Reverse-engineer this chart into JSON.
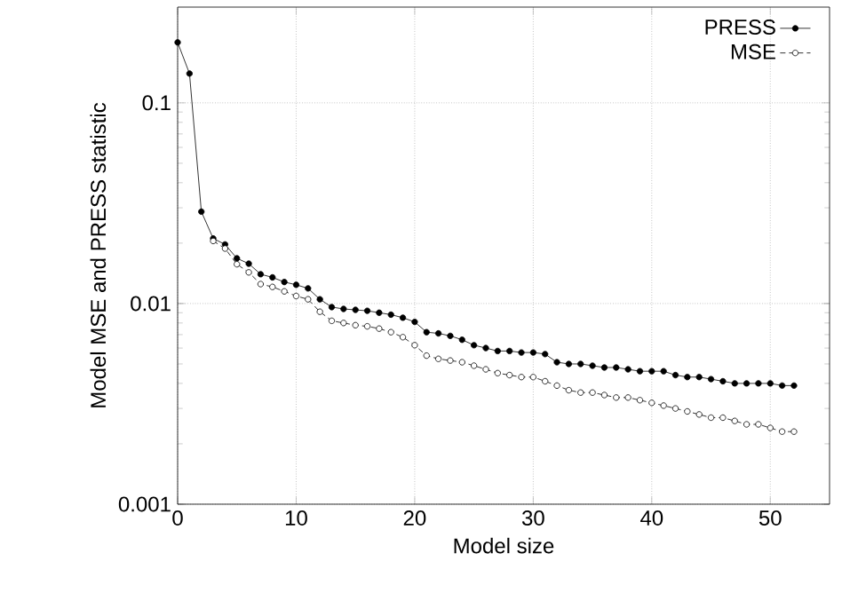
{
  "chart_data": {
    "type": "line",
    "xlabel": "Model size",
    "ylabel": "Model MSE and PRESS statistic",
    "log": "y",
    "xlim": [
      0,
      55
    ],
    "ylim": [
      0.001,
      0.3
    ],
    "xticks": [
      0,
      10,
      20,
      30,
      40,
      50
    ],
    "yticks": [
      {
        "value": 0.001,
        "label": "0.001"
      },
      {
        "value": 0.01,
        "label": "0.01"
      },
      {
        "value": 0.1,
        "label": "0.1"
      }
    ],
    "grid": true,
    "legend": "top right",
    "marker": "circle",
    "x": [
      0,
      1,
      2,
      3,
      4,
      5,
      6,
      7,
      8,
      9,
      10,
      11,
      12,
      13,
      14,
      15,
      16,
      17,
      18,
      19,
      20,
      21,
      22,
      23,
      24,
      25,
      26,
      27,
      28,
      29,
      30,
      31,
      32,
      33,
      34,
      35,
      36,
      37,
      38,
      39,
      40,
      41,
      42,
      43,
      44,
      45,
      46,
      47,
      48,
      49,
      50,
      51,
      52
    ],
    "series": [
      {
        "name": "PRESS",
        "color": "#000000",
        "line_style": "solid",
        "values": [
          0.2,
          0.14,
          0.0287,
          0.0211,
          0.0197,
          0.0168,
          0.0158,
          0.014,
          0.0135,
          0.0128,
          0.0124,
          0.0119,
          0.0105,
          0.0096,
          0.0094,
          0.0093,
          0.0092,
          0.009,
          0.0088,
          0.0085,
          0.0081,
          0.0072,
          0.0071,
          0.0069,
          0.0066,
          0.0062,
          0.006,
          0.0058,
          0.0058,
          0.0057,
          0.0057,
          0.0056,
          0.0051,
          0.005,
          0.005,
          0.0049,
          0.0048,
          0.0048,
          0.0047,
          0.0046,
          0.0046,
          0.0046,
          0.0044,
          0.0043,
          0.0043,
          0.0042,
          0.0041,
          0.004,
          0.004,
          0.004,
          0.004,
          0.0039,
          0.0039
        ]
      },
      {
        "name": "MSE",
        "color": "#000000",
        "line_style": "dashed",
        "values": [
          null,
          null,
          null,
          0.0205,
          0.0188,
          0.0157,
          0.0143,
          0.0125,
          0.0121,
          0.0115,
          0.0109,
          0.0105,
          0.0091,
          0.0082,
          0.008,
          0.0078,
          0.0077,
          0.0075,
          0.0072,
          0.0068,
          0.0062,
          0.0055,
          0.0053,
          0.0052,
          0.0051,
          0.0049,
          0.0047,
          0.0045,
          0.0044,
          0.0043,
          0.0043,
          0.0041,
          0.0039,
          0.0037,
          0.0036,
          0.0036,
          0.0035,
          0.0034,
          0.0034,
          0.0033,
          0.0032,
          0.0031,
          0.003,
          0.0029,
          0.0028,
          0.0027,
          0.0027,
          0.0026,
          0.0025,
          0.0025,
          0.0024,
          0.0023,
          0.0023
        ]
      }
    ]
  }
}
